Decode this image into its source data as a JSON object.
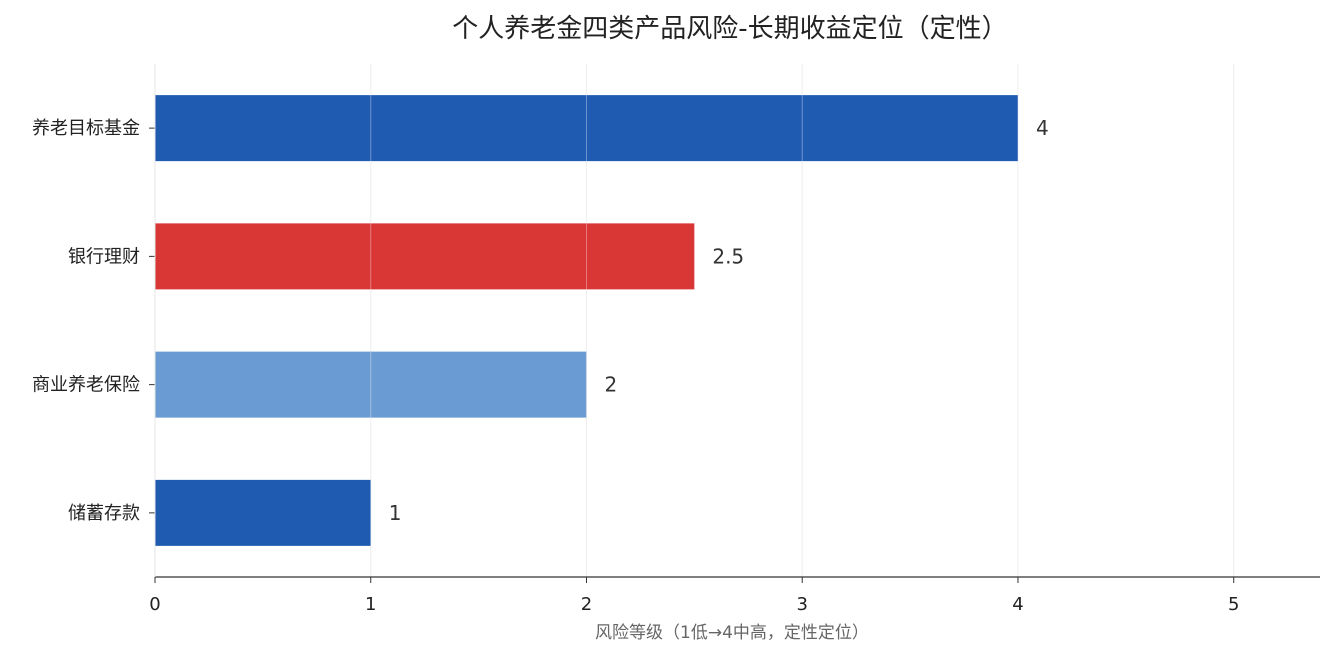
{
  "chart_data": {
    "type": "bar",
    "orientation": "horizontal",
    "title": "个人养老金四类产品风险-长期收益定位（定性）",
    "xlabel": "风险等级（1低→4中高，定性定位）",
    "ylabel": "",
    "categories": [
      "养老目标基金",
      "银行理财",
      "商业养老保险",
      "储蓄存款"
    ],
    "values": [
      4,
      2.5,
      2,
      1
    ],
    "value_labels": [
      "4",
      "2.5",
      "2",
      "1"
    ],
    "colors": [
      "#1f5bb0",
      "#d93636",
      "#6b9bd3",
      "#1f5bb0"
    ],
    "xlim": [
      0,
      5.4
    ],
    "xticks": [
      0,
      1,
      2,
      3,
      4,
      5
    ],
    "xtick_labels": [
      "0",
      "1",
      "2",
      "3",
      "4",
      "5"
    ],
    "grid": true,
    "grid_axis": "x",
    "legend": "none"
  }
}
